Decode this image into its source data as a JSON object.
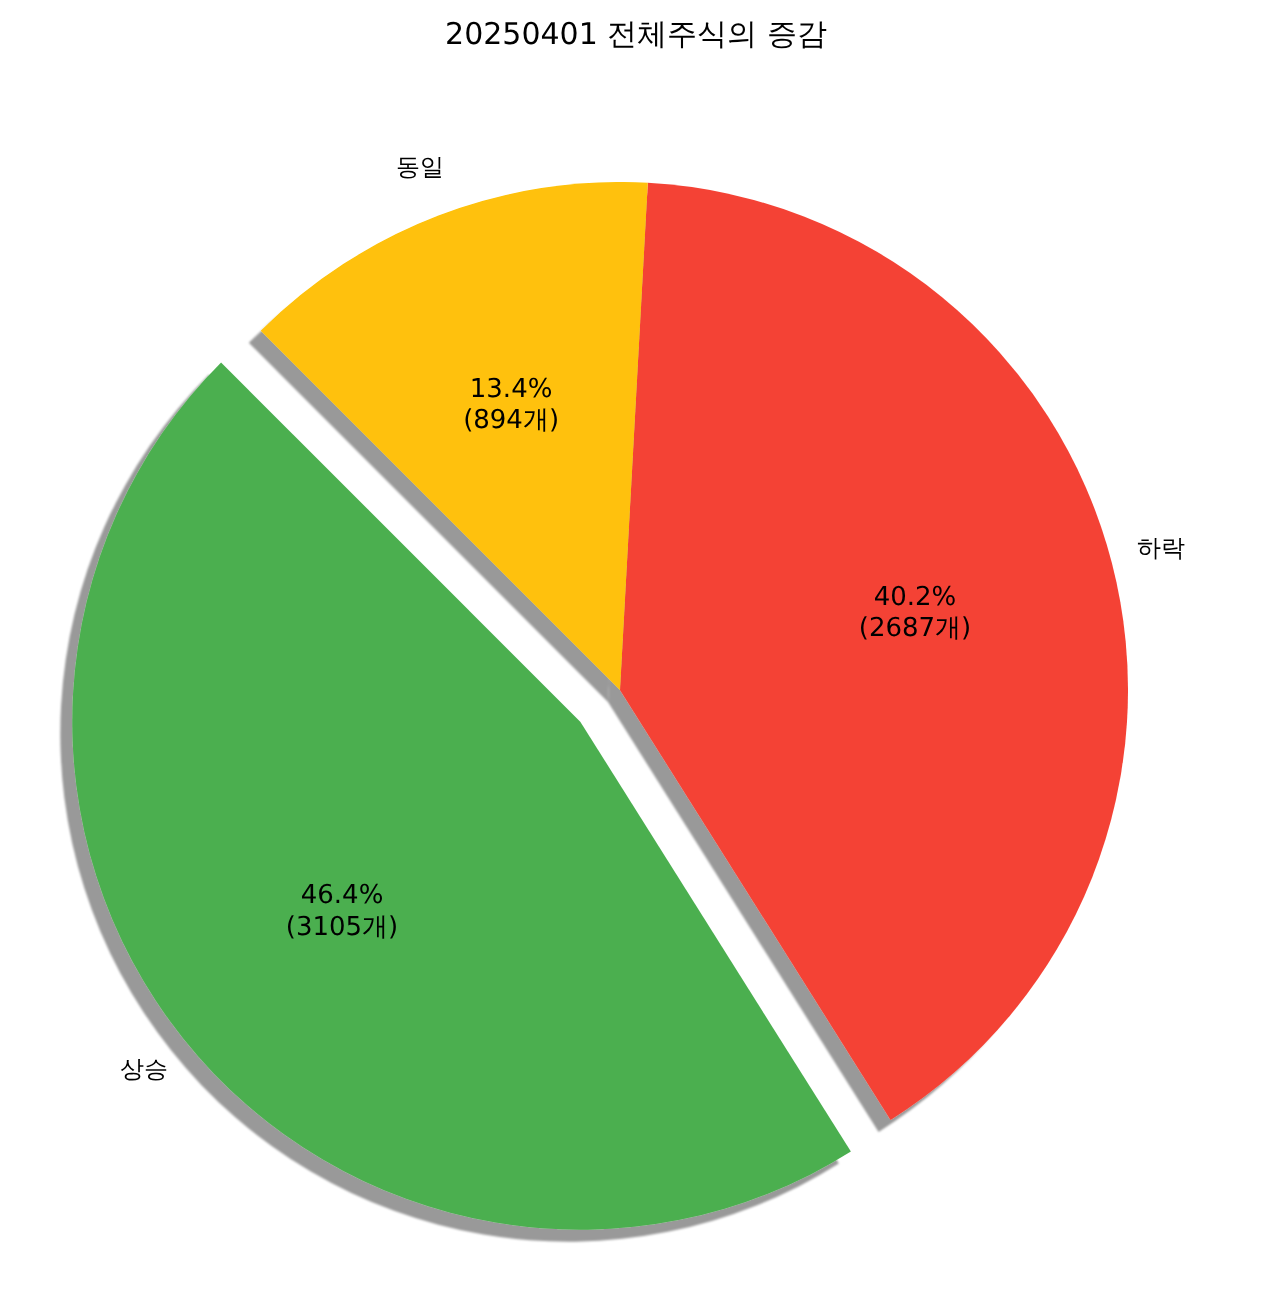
{
  "chart_data": {
    "type": "pie",
    "title": "20250401 전체주식의 증감",
    "categories": [
      "상승",
      "하락",
      "동일"
    ],
    "values": [
      3105,
      2687,
      894
    ],
    "colors": [
      "#4caf50",
      "#f44336",
      "#ffc107"
    ],
    "value_labels": [
      "46.4%\n(3105개)",
      "40.2%\n(2687개)",
      "13.4%\n(894개)"
    ]
  }
}
